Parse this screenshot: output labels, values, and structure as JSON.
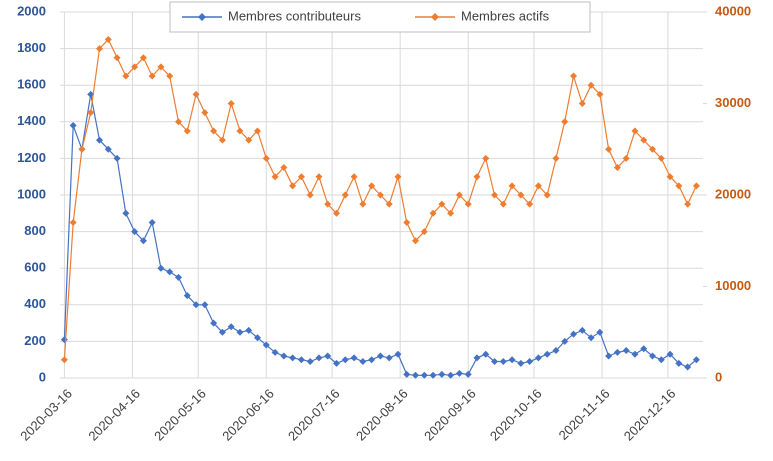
{
  "chart_data": {
    "type": "line",
    "x": [
      "2020-03-16",
      "2020-03-20",
      "2020-03-24",
      "2020-03-28",
      "2020-04-01",
      "2020-04-05",
      "2020-04-09",
      "2020-04-13",
      "2020-04-17",
      "2020-04-21",
      "2020-04-25",
      "2020-04-29",
      "2020-05-03",
      "2020-05-07",
      "2020-05-11",
      "2020-05-15",
      "2020-05-19",
      "2020-05-23",
      "2020-05-27",
      "2020-05-31",
      "2020-06-04",
      "2020-06-08",
      "2020-06-12",
      "2020-06-16",
      "2020-06-20",
      "2020-06-24",
      "2020-06-28",
      "2020-07-02",
      "2020-07-06",
      "2020-07-10",
      "2020-07-14",
      "2020-07-18",
      "2020-07-22",
      "2020-07-26",
      "2020-07-30",
      "2020-08-03",
      "2020-08-07",
      "2020-08-11",
      "2020-08-15",
      "2020-08-19",
      "2020-08-23",
      "2020-08-27",
      "2020-08-31",
      "2020-09-04",
      "2020-09-08",
      "2020-09-12",
      "2020-09-16",
      "2020-09-20",
      "2020-09-24",
      "2020-09-28",
      "2020-10-02",
      "2020-10-06",
      "2020-10-10",
      "2020-10-14",
      "2020-10-18",
      "2020-10-22",
      "2020-10-26",
      "2020-10-30",
      "2020-11-03",
      "2020-11-07",
      "2020-11-11",
      "2020-11-15",
      "2020-11-19",
      "2020-11-23",
      "2020-11-27",
      "2020-12-01",
      "2020-12-05",
      "2020-12-09",
      "2020-12-13",
      "2020-12-17",
      "2020-12-21",
      "2020-12-25",
      "2020-12-29"
    ],
    "series": [
      {
        "name": "Membres contributeurs",
        "color": "#4472c4",
        "axis": "y",
        "values": [
          210,
          1380,
          1250,
          1550,
          1300,
          1250,
          1200,
          900,
          800,
          750,
          850,
          600,
          580,
          550,
          450,
          400,
          400,
          300,
          250,
          280,
          250,
          260,
          220,
          180,
          140,
          120,
          110,
          100,
          90,
          110,
          120,
          80,
          100,
          110,
          90,
          100,
          120,
          110,
          130,
          20,
          15,
          15,
          15,
          20,
          15,
          25,
          20,
          110,
          130,
          90,
          90,
          100,
          80,
          90,
          110,
          130,
          150,
          200,
          240,
          260,
          220,
          250,
          120,
          140,
          150,
          130,
          160,
          120,
          100,
          130,
          80,
          60,
          100
        ]
      },
      {
        "name": "Membres actifs",
        "color": "#ed7d31",
        "axis": "y2",
        "values": [
          2000,
          17000,
          25000,
          29000,
          36000,
          37000,
          35000,
          33000,
          34000,
          35000,
          33000,
          34000,
          33000,
          28000,
          27000,
          31000,
          29000,
          27000,
          26000,
          30000,
          27000,
          26000,
          27000,
          24000,
          22000,
          23000,
          21000,
          22000,
          20000,
          22000,
          19000,
          18000,
          20000,
          22000,
          19000,
          21000,
          20000,
          19000,
          22000,
          17000,
          15000,
          16000,
          18000,
          19000,
          18000,
          20000,
          19000,
          22000,
          24000,
          20000,
          19000,
          21000,
          20000,
          19000,
          21000,
          20000,
          24000,
          28000,
          33000,
          30000,
          32000,
          31000,
          25000,
          23000,
          24000,
          27000,
          26000,
          25000,
          24000,
          22000,
          21000,
          19000,
          21000
        ]
      }
    ],
    "xlim": [
      "2020-03-14",
      "2021-01-01"
    ],
    "xticks": [
      "2020-03-16",
      "2020-04-16",
      "2020-05-16",
      "2020-06-16",
      "2020-07-16",
      "2020-08-16",
      "2020-09-16",
      "2020-10-16",
      "2020-11-16",
      "2020-12-16"
    ],
    "ylim": [
      0,
      2000
    ],
    "yticks": [
      0,
      200,
      400,
      600,
      800,
      1000,
      1200,
      1400,
      1600,
      1800,
      2000
    ],
    "y2lim": [
      0,
      40000
    ],
    "y2ticks": [
      0,
      10000,
      20000,
      30000,
      40000
    ],
    "grid": true,
    "legend": "top"
  }
}
